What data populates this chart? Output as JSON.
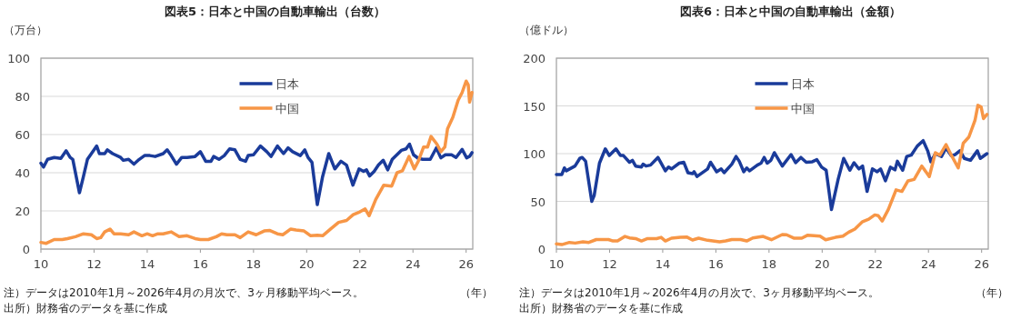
{
  "chart_data": [
    {
      "type": "line",
      "title": "図表5：日本と中国の自動車輸出（台数）",
      "ylabel": "（万台）",
      "xlabel": "（年）",
      "xlim": [
        10,
        26.25
      ],
      "xticks": [
        10,
        12,
        14,
        16,
        18,
        20,
        22,
        24,
        26
      ],
      "ylim": [
        0,
        100
      ],
      "yticks": [
        0,
        20,
        40,
        60,
        80,
        100
      ],
      "grid": "y",
      "legend": "top",
      "line_style": "solid",
      "marker": "none",
      "series": [
        {
          "name": "日本",
          "color": "#1a3b9a",
          "x": [
            10.0,
            10.1,
            10.25,
            10.5,
            10.75,
            10.95,
            11.1,
            11.2,
            11.45,
            11.6,
            11.75,
            12.0,
            12.1,
            12.2,
            12.4,
            12.5,
            12.7,
            13.0,
            13.1,
            13.3,
            13.5,
            13.7,
            13.9,
            14.1,
            14.3,
            14.6,
            14.75,
            14.9,
            15.1,
            15.3,
            15.5,
            15.8,
            16.0,
            16.2,
            16.4,
            16.5,
            16.7,
            16.9,
            17.1,
            17.3,
            17.5,
            17.7,
            17.8,
            18.0,
            18.26,
            18.5,
            18.66,
            18.9,
            19.13,
            19.3,
            19.47,
            19.76,
            19.93,
            20.05,
            20.2,
            20.4,
            20.6,
            20.83,
            21.06,
            21.29,
            21.5,
            21.74,
            21.97,
            22.14,
            22.25,
            22.37,
            22.54,
            22.7,
            22.88,
            23.05,
            23.22,
            23.56,
            23.74,
            23.87,
            24.02,
            24.2,
            24.37,
            24.65,
            24.88,
            25.05,
            25.22,
            25.45,
            25.62,
            25.85,
            26.02,
            26.13,
            26.22
          ],
          "values": [
            45,
            43,
            47,
            48,
            47.5,
            51.5,
            48,
            47,
            29.5,
            38,
            47,
            52,
            54,
            50,
            50,
            52,
            50,
            48,
            46.5,
            47,
            44.5,
            47,
            49,
            49,
            48.5,
            50,
            52,
            49,
            44.5,
            48,
            48,
            48.5,
            51,
            46,
            46,
            48.5,
            47,
            49,
            52.5,
            52,
            47,
            46,
            49,
            49.4,
            54,
            51,
            48.5,
            54,
            50,
            53,
            51,
            49,
            52,
            48,
            45.4,
            23.3,
            38,
            50,
            42,
            46,
            44,
            33.5,
            42,
            40.7,
            41.5,
            38.3,
            40.7,
            44,
            46.5,
            41.5,
            47,
            51.7,
            52.5,
            55,
            49.4,
            47.5,
            47,
            47,
            53,
            47.8,
            49.4,
            49.4,
            48,
            52.2,
            47.8,
            48.6,
            50.5
          ]
        },
        {
          "name": "中国",
          "color": "#f79646",
          "x": [
            10.0,
            10.2,
            10.5,
            10.8,
            11.0,
            11.3,
            11.6,
            11.9,
            12.1,
            12.25,
            12.4,
            12.6,
            12.75,
            13.0,
            13.3,
            13.5,
            13.8,
            14.0,
            14.2,
            14.4,
            14.6,
            14.9,
            15.2,
            15.5,
            15.8,
            16.0,
            16.3,
            16.6,
            16.8,
            17.0,
            17.3,
            17.5,
            17.8,
            18.1,
            18.4,
            18.6,
            18.9,
            19.1,
            19.4,
            19.6,
            19.9,
            20.15,
            20.4,
            20.6,
            20.9,
            21.2,
            21.5,
            21.75,
            22.0,
            22.2,
            22.35,
            22.6,
            22.9,
            23.2,
            23.4,
            23.6,
            23.85,
            24.05,
            24.2,
            24.4,
            24.55,
            24.68,
            24.9,
            25.05,
            25.2,
            25.3,
            25.5,
            25.7,
            25.85,
            26.0,
            26.08,
            26.13,
            26.22
          ],
          "values": [
            3.5,
            3,
            5,
            5,
            5.5,
            6.5,
            8,
            7.5,
            5.5,
            6,
            9,
            10.5,
            8,
            8,
            7.5,
            9,
            7,
            8,
            7,
            8,
            8,
            9,
            6.5,
            7,
            5.5,
            5,
            5,
            6.5,
            8,
            7.5,
            7.5,
            6,
            9,
            7.5,
            9.5,
            9.8,
            8,
            7.5,
            10.5,
            10,
            9.5,
            7,
            7.3,
            7,
            10.5,
            14,
            15,
            18,
            19.5,
            21,
            17.5,
            26,
            33.5,
            33,
            40,
            41,
            48.5,
            42,
            46,
            53.5,
            53.5,
            59,
            55,
            51,
            53.5,
            63,
            69,
            78,
            82,
            88,
            86,
            77,
            82
          ]
        }
      ],
      "annotations": [
        "注）データは2010年1月～2026年4月の月次で、3ヶ月移動平均ベース。",
        "出所）財務省のデータを基に作成"
      ]
    },
    {
      "type": "line",
      "title": "図表6：日本と中国の自動車輸出（金額）",
      "ylabel": "（億ドル）",
      "xlabel": "（年）",
      "xlim": [
        10,
        26.25
      ],
      "xticks": [
        10,
        12,
        14,
        16,
        18,
        20,
        22,
        24,
        26
      ],
      "ylim": [
        0,
        200
      ],
      "yticks": [
        0,
        50,
        100,
        150,
        200
      ],
      "grid": "y",
      "legend": "top",
      "line_style": "solid",
      "marker": "none",
      "series": [
        {
          "name": "日本",
          "color": "#1a3b9a",
          "x": [
            10.0,
            10.2,
            10.3,
            10.37,
            10.7,
            10.88,
            10.97,
            11.1,
            11.33,
            11.42,
            11.62,
            11.84,
            11.99,
            12.24,
            12.41,
            12.52,
            12.75,
            12.86,
            12.98,
            13.2,
            13.26,
            13.37,
            13.54,
            13.82,
            14.1,
            14.22,
            14.33,
            14.62,
            14.79,
            14.95,
            15.12,
            15.18,
            15.29,
            15.69,
            15.8,
            16.03,
            16.2,
            16.31,
            16.6,
            16.76,
            16.88,
            17.05,
            17.16,
            17.27,
            17.56,
            17.7,
            17.82,
            17.93,
            18.07,
            18.2,
            18.5,
            18.83,
            19.0,
            19.2,
            19.4,
            19.63,
            19.8,
            19.98,
            20.15,
            20.35,
            20.6,
            20.81,
            21.04,
            21.2,
            21.38,
            21.52,
            21.69,
            21.89,
            22.07,
            22.2,
            22.38,
            22.57,
            22.74,
            22.83,
            23.03,
            23.18,
            23.35,
            23.58,
            23.8,
            23.97,
            24.09,
            24.26,
            24.49,
            24.66,
            24.86,
            25.0,
            25.18,
            25.35,
            25.58,
            25.84,
            25.95,
            26.2
          ],
          "values": [
            78,
            78,
            85,
            82,
            87,
            95,
            96,
            92,
            50,
            56,
            90,
            105,
            98,
            105,
            98,
            98,
            91,
            93,
            87,
            86,
            89,
            87,
            88,
            96,
            82,
            86,
            84,
            90,
            91,
            80,
            79,
            81,
            76,
            84,
            91,
            81,
            84,
            80,
            89,
            97,
            92,
            81,
            85,
            82,
            88,
            90,
            96,
            90,
            93,
            101,
            87,
            99,
            90.5,
            96,
            91,
            91.5,
            93.7,
            85.8,
            82.6,
            41.5,
            73,
            95,
            82.6,
            90.5,
            84,
            87,
            60.4,
            84,
            81,
            84,
            71.5,
            85.8,
            83,
            92,
            82.6,
            97,
            98.4,
            108,
            113.6,
            103,
            91.5,
            100,
            97,
            106,
            97.8,
            99,
            103,
            95,
            93,
            103,
            95,
            100
          ]
        },
        {
          "name": "中国",
          "color": "#f79646",
          "x": [
            10.0,
            10.2,
            10.49,
            10.71,
            11.0,
            11.22,
            11.5,
            11.96,
            12.13,
            12.3,
            12.58,
            12.75,
            12.98,
            13.2,
            13.43,
            13.77,
            13.94,
            14.1,
            14.33,
            14.67,
            14.9,
            15.12,
            15.35,
            15.69,
            16.14,
            16.37,
            16.6,
            16.93,
            17.16,
            17.39,
            17.78,
            18.09,
            18.5,
            18.66,
            18.95,
            19.23,
            19.46,
            19.92,
            20.13,
            20.5,
            20.78,
            21.0,
            21.23,
            21.52,
            21.75,
            21.98,
            22.11,
            22.26,
            22.49,
            22.78,
            23.0,
            23.23,
            23.46,
            23.75,
            24.03,
            24.26,
            24.43,
            24.66,
            24.86,
            25.12,
            25.31,
            25.52,
            25.75,
            25.86,
            25.98,
            26.07,
            26.2
          ],
          "values": [
            5.4,
            4.7,
            7,
            6.3,
            7.6,
            7,
            10,
            10,
            8.5,
            8.5,
            13.3,
            11.7,
            11,
            8.5,
            11,
            11,
            12.3,
            8.5,
            11.4,
            12.3,
            12.7,
            9.5,
            11.4,
            9.2,
            7.6,
            8.5,
            10,
            10,
            8.5,
            11.7,
            13.3,
            9.8,
            15.2,
            15,
            11.4,
            11.4,
            14.6,
            13.6,
            9.8,
            12.3,
            13.6,
            17.7,
            21,
            28.8,
            31.3,
            35.8,
            35,
            29.4,
            41.5,
            62,
            60.4,
            71.5,
            73,
            87,
            76,
            101,
            98.4,
            109.5,
            98.4,
            85,
            111,
            117.4,
            134.8,
            150.6,
            149,
            136.7,
            141
          ]
        }
      ],
      "annotations": [
        "注）データは2010年1月～2026年4月の月次で、3ヶ月移動平均ベース。",
        "出所）財務省のデータを基に作成"
      ]
    }
  ]
}
